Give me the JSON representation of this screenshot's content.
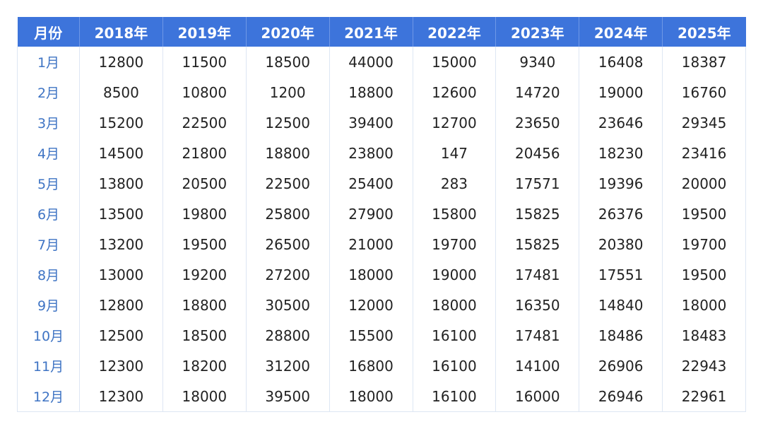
{
  "table": {
    "header": [
      "月份",
      "2018年",
      "2019年",
      "2020年",
      "2021年",
      "2022年",
      "2023年",
      "2024年",
      "2025年"
    ],
    "rows": [
      [
        "1月",
        12800,
        11500,
        18500,
        44000,
        15000,
        9340,
        16408,
        18387
      ],
      [
        "2月",
        8500,
        10800,
        1200,
        18800,
        12600,
        14720,
        19000,
        16760
      ],
      [
        "3月",
        15200,
        22500,
        12500,
        39400,
        12700,
        23650,
        23646,
        29345
      ],
      [
        "4月",
        14500,
        21800,
        18800,
        23800,
        147,
        20456,
        18230,
        23416
      ],
      [
        "5月",
        13800,
        20500,
        22500,
        25400,
        283,
        17571,
        19396,
        20000
      ],
      [
        "6月",
        13500,
        19800,
        25800,
        27900,
        15800,
        15825,
        26376,
        19500
      ],
      [
        "7月",
        13200,
        19500,
        26500,
        21000,
        19700,
        15825,
        20380,
        19700
      ],
      [
        "8月",
        13000,
        19200,
        27200,
        18000,
        19000,
        17481,
        17551,
        19500
      ],
      [
        "9月",
        12800,
        18800,
        30500,
        12000,
        18000,
        16350,
        14840,
        18000
      ],
      [
        "10月",
        12500,
        18500,
        28800,
        15500,
        16100,
        17481,
        18486,
        18483
      ],
      [
        "11月",
        12300,
        18200,
        31200,
        16800,
        16100,
        14100,
        26906,
        22943
      ],
      [
        "12月",
        12300,
        18000,
        39500,
        18000,
        16100,
        16000,
        26946,
        22961
      ]
    ]
  }
}
